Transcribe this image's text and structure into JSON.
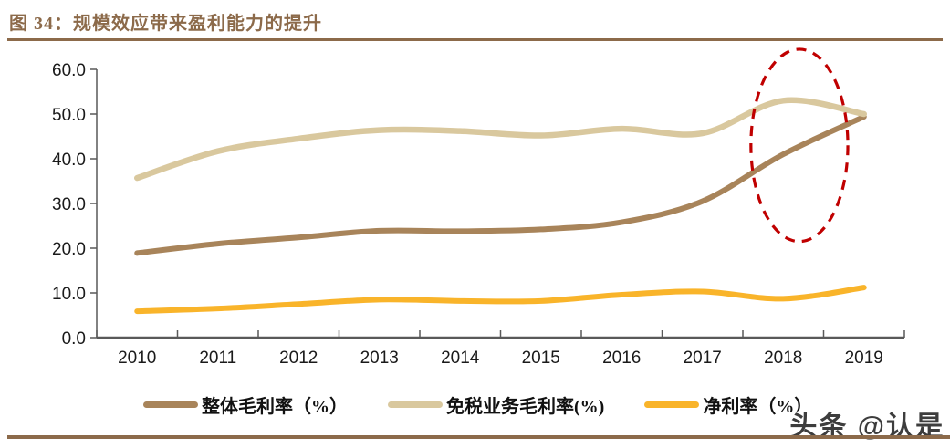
{
  "header": {
    "title": "图 34：规模效应带来盈利能力的提升",
    "accent_color": "#8C6A4A"
  },
  "watermark": {
    "text": "头条 @认是"
  },
  "chart_data": {
    "type": "line",
    "x": [
      2010,
      2011,
      2012,
      2013,
      2014,
      2015,
      2016,
      2017,
      2018,
      2019
    ],
    "series": [
      {
        "key": "overall-gross-margin",
        "name": "整体毛利率（%）",
        "color": "#A8845A",
        "stroke_width": 6,
        "values": [
          18.9,
          21.0,
          22.4,
          23.9,
          23.8,
          24.2,
          25.8,
          30.5,
          41.0,
          49.4
        ]
      },
      {
        "key": "dutyfree-gross-margin",
        "name": "免税业务毛利率(%)",
        "color": "#D9C89E",
        "stroke_width": 6.5,
        "values": [
          35.7,
          41.7,
          44.5,
          46.4,
          46.2,
          45.2,
          46.7,
          45.7,
          53.0,
          50.0
        ]
      },
      {
        "key": "net-margin",
        "name": "净利率（%）",
        "color": "#F9B42A",
        "stroke_width": 6,
        "values": [
          5.9,
          6.5,
          7.5,
          8.5,
          8.2,
          8.2,
          9.6,
          10.3,
          8.7,
          11.2
        ]
      }
    ],
    "ylim": [
      0,
      60
    ],
    "yticks": [
      "0.0",
      "10.0",
      "20.0",
      "30.0",
      "40.0",
      "50.0",
      "60.0"
    ],
    "grid": false,
    "legend_position": "bottom",
    "axis_color": "#595959",
    "annotation": {
      "shape": "ellipse",
      "style": "dashed",
      "color": "#C00000",
      "x_year": 2018.2,
      "y_value": 43,
      "rx_years": 0.6,
      "ry_values": 21.5
    }
  }
}
